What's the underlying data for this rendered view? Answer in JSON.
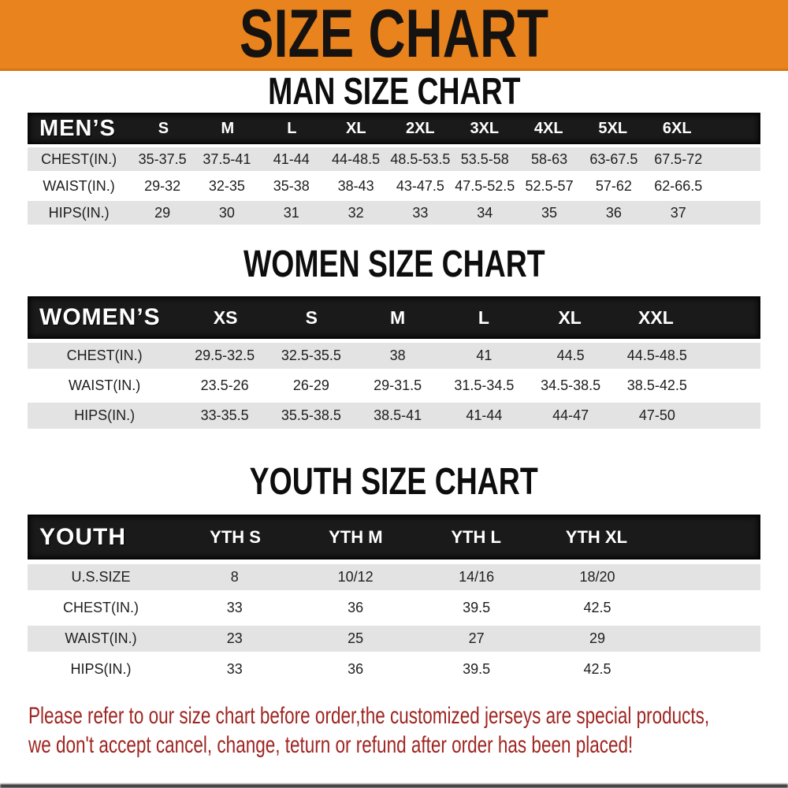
{
  "banner": {
    "title": "SIZE CHART",
    "bg_color": "#E8831D",
    "text_color": "#151210"
  },
  "sections": [
    {
      "id": "men",
      "title": "MAN SIZE CHART",
      "header": {
        "label": "MEN’S",
        "columns": [
          "S",
          "M",
          "L",
          "XL",
          "2XL",
          "3XL",
          "4XL",
          "5XL",
          "6XL"
        ]
      },
      "rows": [
        {
          "label": "CHEST(IN.)",
          "values": [
            "35-37.5",
            "37.5-41",
            "41-44",
            "44-48.5",
            "48.5-53.5",
            "53.5-58",
            "58-63",
            "63-67.5",
            "67.5-72"
          ]
        },
        {
          "label": "WAIST(IN.)",
          "values": [
            "29-32",
            "32-35",
            "35-38",
            "38-43",
            "43-47.5",
            "47.5-52.5",
            "52.5-57",
            "57-62",
            "62-66.5"
          ]
        },
        {
          "label": "HIPS(IN.)",
          "values": [
            "29",
            "30",
            "31",
            "32",
            "33",
            "34",
            "35",
            "36",
            "37"
          ]
        }
      ]
    },
    {
      "id": "women",
      "title": "WOMEN SIZE CHART",
      "header": {
        "label": "WOMEN’S",
        "columns": [
          "XS",
          "S",
          "M",
          "L",
          "XL",
          "XXL"
        ]
      },
      "rows": [
        {
          "label": "CHEST(IN.)",
          "values": [
            "29.5-32.5",
            "32.5-35.5",
            "38",
            "41",
            "44.5",
            "44.5-48.5"
          ]
        },
        {
          "label": "WAIST(IN.)",
          "values": [
            "23.5-26",
            "26-29",
            "29-31.5",
            "31.5-34.5",
            "34.5-38.5",
            "38.5-42.5"
          ]
        },
        {
          "label": "HIPS(IN.)",
          "values": [
            "33-35.5",
            "35.5-38.5",
            "38.5-41",
            "41-44",
            "44-47",
            "47-50"
          ]
        }
      ]
    },
    {
      "id": "youth",
      "title": "YOUTH SIZE CHART",
      "header": {
        "label": "YOUTH",
        "columns": [
          "YTH S",
          "YTH M",
          "YTH L",
          "YTH XL"
        ]
      },
      "rows": [
        {
          "label": "U.S.SIZE",
          "values": [
            "8",
            "10/12",
            "14/16",
            "18/20"
          ]
        },
        {
          "label": "CHEST(IN.)",
          "values": [
            "33",
            "36",
            "39.5",
            "42.5"
          ]
        },
        {
          "label": "WAIST(IN.)",
          "values": [
            "23",
            "25",
            "27",
            "29"
          ]
        },
        {
          "label": "HIPS(IN.)",
          "values": [
            "33",
            "36",
            "39.5",
            "42.5"
          ]
        }
      ]
    }
  ],
  "footer": {
    "line1": "Please refer to our size chart before order,the customized jerseys are special products,",
    "line2": "we don't accept cancel, change, teturn or refund after order has been placed!",
    "text_color": "#9E2521"
  }
}
